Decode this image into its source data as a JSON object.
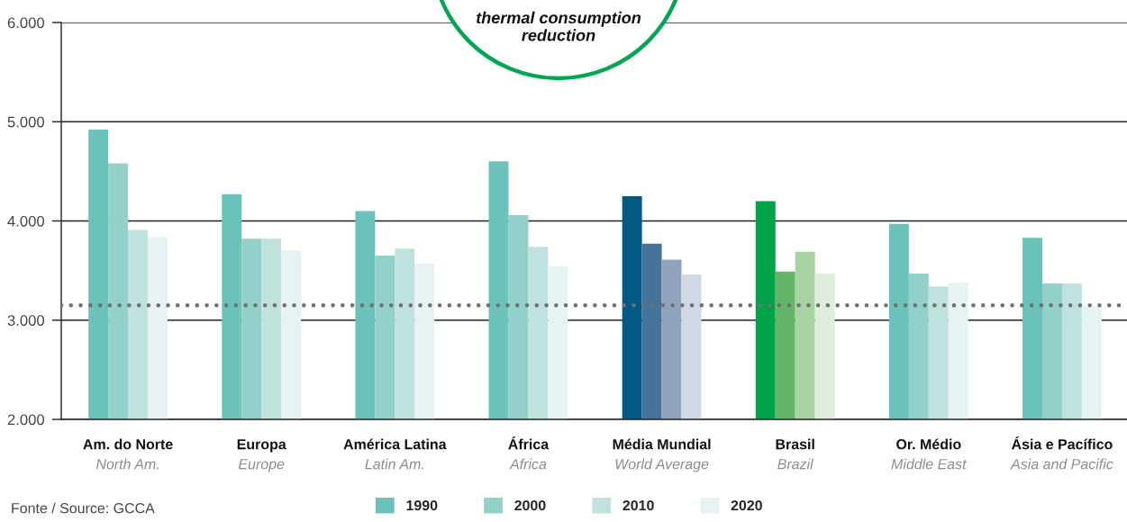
{
  "chart_data": {
    "type": "bar",
    "categories": [
      "Am. do Norte\nNorth Am.",
      "Europa\nEurope",
      "América Latina\nLatin Am.",
      "África\nAfrica",
      "Média Mundial\nWorld Average",
      "Brasil\nBrazil",
      "Or. Médio\nMiddle East",
      "Ásia e Pacífico\nAsia and Pacific"
    ],
    "series": [
      {
        "name": "1990",
        "color": "#6bc2bb",
        "colors": [
          "#6bc2bb",
          "#6bc2bb",
          "#6bc2bb",
          "#6bc2bb",
          "#005a84",
          "#00a347",
          "#6bc2bb",
          "#6bc2bb"
        ],
        "values": [
          4920,
          4270,
          4100,
          4600,
          4250,
          4200,
          3970,
          3830
        ]
      },
      {
        "name": "2000",
        "color": "#93d0ca",
        "colors": [
          "#93d0ca",
          "#93d0ca",
          "#93d0ca",
          "#93d0ca",
          "#457399",
          "#64b56a",
          "#93d0ca",
          "#93d0ca"
        ],
        "values": [
          4580,
          3820,
          3650,
          4060,
          3770,
          3490,
          3470,
          3370
        ]
      },
      {
        "name": "2010",
        "color": "#bfe2df",
        "colors": [
          "#bfe2df",
          "#bfe2df",
          "#bfe2df",
          "#bfe2df",
          "#8fa3bd",
          "#a9d3a2",
          "#bfe2df",
          "#bfe2df"
        ],
        "values": [
          3910,
          3820,
          3720,
          3740,
          3610,
          3690,
          3340,
          3370
        ]
      },
      {
        "name": "2020",
        "color": "#e6f3f2",
        "colors": [
          "#e6f3f2",
          "#e6f3f2",
          "#e6f3f2",
          "#e6f3f2",
          "#d0d7e5",
          "#dfeedc",
          "#e6f3f2",
          "#e6f3f2"
        ],
        "values": [
          3840,
          3700,
          3570,
          3540,
          3460,
          3470,
          3380,
          3140
        ]
      }
    ],
    "ylim": [
      2000,
      6000
    ],
    "yticks": [
      {
        "value": 2000,
        "label": "2.000"
      },
      {
        "value": 3000,
        "label": "3.000"
      },
      {
        "value": 4000,
        "label": "4.000"
      },
      {
        "value": 5000,
        "label": "5.000"
      },
      {
        "value": 6000,
        "label": "6.000"
      }
    ],
    "grid": "y",
    "legend": "bottom",
    "ref_lines": [
      {
        "axis": "y",
        "value": 3150,
        "color": "#707070",
        "line_style": "dotted"
      }
    ],
    "annotations": [
      "thermal consumption\nreduction",
      "Fonte / Source: GCCA"
    ]
  }
}
